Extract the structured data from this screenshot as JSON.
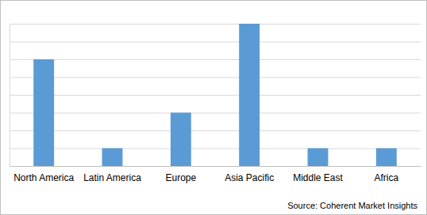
{
  "chart_data": {
    "type": "bar",
    "categories": [
      "North America",
      "Latin America",
      "Europe",
      "Asia Pacific",
      "Middle East",
      "Africa"
    ],
    "values": [
      6,
      1,
      3,
      8,
      1,
      1
    ],
    "color": "#5b9bd5",
    "ylim": [
      0,
      8
    ],
    "yticks": [
      0,
      1,
      2,
      3,
      4,
      5,
      6,
      7,
      8
    ],
    "grid": true,
    "tick_labels": "x",
    "source": "Source: Coherent Market Insights"
  }
}
